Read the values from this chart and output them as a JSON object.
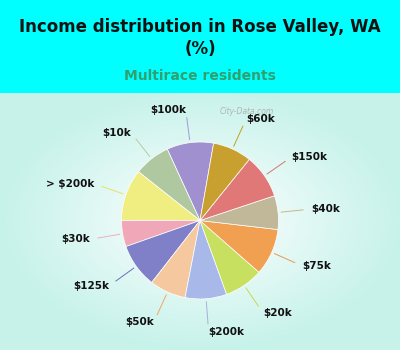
{
  "title": "Income distribution in Rose Valley, WA\n(%)",
  "subtitle": "Multirace residents",
  "labels": [
    "$100k",
    "$10k",
    "> $200k",
    "$30k",
    "$125k",
    "$50k",
    "$200k",
    "$20k",
    "$75k",
    "$40k",
    "$150k",
    "$60k"
  ],
  "sizes": [
    9.0,
    7.0,
    10.0,
    5.0,
    8.5,
    7.0,
    8.0,
    7.5,
    9.0,
    6.5,
    8.5,
    7.5
  ],
  "colors": [
    "#a090d0",
    "#b0c8a0",
    "#f0ee80",
    "#f0a8b8",
    "#8080c8",
    "#f5c8a0",
    "#a8b8e8",
    "#c8e060",
    "#f0a050",
    "#c0b898",
    "#e07878",
    "#c8a030"
  ],
  "line_colors": [
    "#a090d0",
    "#b0c8a0",
    "#e8e050",
    "#f0a8b8",
    "#6060b0",
    "#f0a050",
    "#a0a8d8",
    "#c0d840",
    "#e89040",
    "#c0b080",
    "#d06868",
    "#c0980a"
  ],
  "bg_top": "#00ffff",
  "bg_chart_colors": [
    "#ffffff",
    "#d0ece0",
    "#b8e8d8"
  ],
  "title_fontsize": 12,
  "subtitle_fontsize": 10,
  "subtitle_color": "#30a070",
  "label_fontsize": 7.5,
  "startangle": 80,
  "watermark": "City-Data.com"
}
